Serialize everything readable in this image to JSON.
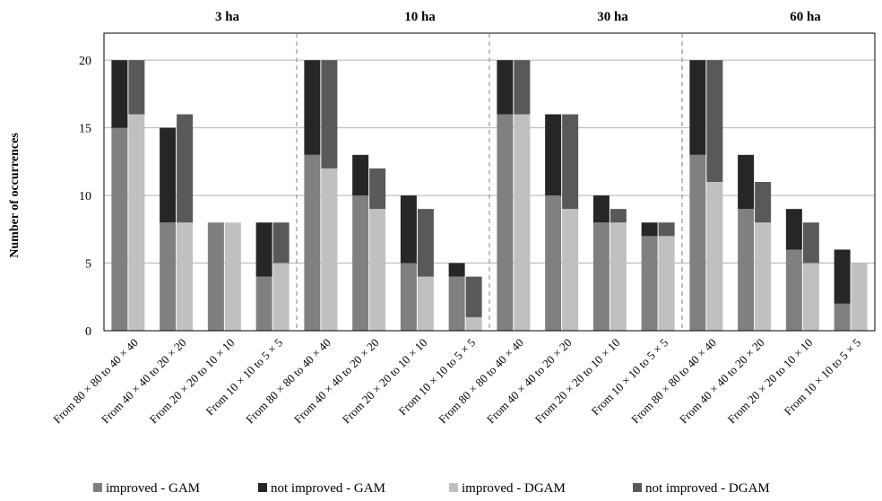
{
  "chart_data": {
    "type": "bar",
    "ylabel": "Number of occurrences",
    "ylim": [
      0,
      22
    ],
    "yticks": [
      0,
      5,
      10,
      15,
      20
    ],
    "grid": true,
    "legend_position": "bottom",
    "panels": [
      {
        "title": "3 ha",
        "categories": [
          "From 80 × 80 to 40 × 40",
          "From 40 × 40 to 20 × 20",
          "From 20 × 20 to 10 × 10",
          "From 10 × 10 to 5 × 5"
        ],
        "gam_improved": [
          15,
          8,
          8,
          4
        ],
        "gam_not_improved": [
          5,
          7,
          0,
          4
        ],
        "dgam_improved": [
          16,
          8,
          8,
          5
        ],
        "dgam_not_improved": [
          4,
          8,
          0,
          3
        ]
      },
      {
        "title": "10 ha",
        "categories": [
          "From 80 × 80 to 40 × 40",
          "From 40 × 40 to 20 × 20",
          "From 20 × 20 to 10 × 10",
          "From 10 × 10 to 5 × 5"
        ],
        "gam_improved": [
          13,
          10,
          5,
          4
        ],
        "gam_not_improved": [
          7,
          3,
          5,
          1
        ],
        "dgam_improved": [
          12,
          9,
          4,
          1
        ],
        "dgam_not_improved": [
          8,
          3,
          5,
          3
        ]
      },
      {
        "title": "30 ha",
        "categories": [
          "From 80 × 80 to 40 × 40",
          "From 40 × 40 to 20 × 20",
          "From 20 × 20 to 10 × 10",
          "From 10 × 10 to 5 × 5"
        ],
        "gam_improved": [
          16,
          10,
          8,
          7
        ],
        "gam_not_improved": [
          4,
          6,
          2,
          1
        ],
        "dgam_improved": [
          16,
          9,
          8,
          7
        ],
        "dgam_not_improved": [
          4,
          7,
          1,
          1
        ]
      },
      {
        "title": "60 ha",
        "categories": [
          "From 80 × 80 to 40 × 40",
          "From 40 × 40 to 20 × 20",
          "From 20 × 20 to 10 × 10",
          "From 10 × 10 to 5 × 5"
        ],
        "gam_improved": [
          13,
          9,
          6,
          2
        ],
        "gam_not_improved": [
          7,
          4,
          3,
          4
        ],
        "dgam_improved": [
          11,
          8,
          5,
          5
        ],
        "dgam_not_improved": [
          9,
          3,
          3,
          0
        ]
      }
    ],
    "legend": [
      {
        "name": "improved - GAM",
        "color": "#808080"
      },
      {
        "name": "not improved - GAM",
        "color": "#262626"
      },
      {
        "name": "improved - DGAM",
        "color": "#c0c0c0"
      },
      {
        "name": "not improved - DGAM",
        "color": "#595959"
      }
    ]
  }
}
